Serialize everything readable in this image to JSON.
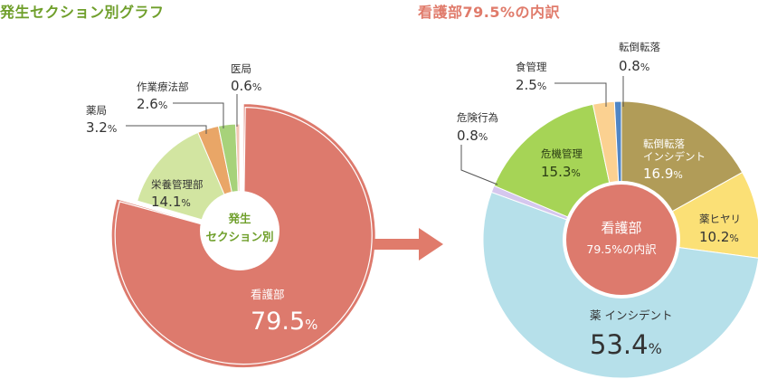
{
  "titles": {
    "left": "発生セクション別グラフ",
    "right": "看護部79.5%の内訳"
  },
  "center_labels": {
    "left_line1": "発生",
    "left_line2": "セクション別",
    "right_line1": "看護部",
    "right_line2": "79.5%の内訳"
  },
  "unit": "%",
  "colors": {
    "left_title": "#6f9f2b",
    "right_title": "#e07b6b",
    "arrow": "#e07b6b",
    "leader": "#555555"
  },
  "chart_data": [
    {
      "type": "pie",
      "title": "発生セクション別グラフ",
      "slices": [
        {
          "name": "看護部",
          "value": 79.5,
          "color": "#dd7a6d"
        },
        {
          "name": "栄養管理部",
          "value": 14.1,
          "color": "#d2e5a1"
        },
        {
          "name": "薬局",
          "value": 3.2,
          "color": "#e9a667"
        },
        {
          "name": "作業療法部",
          "value": 2.6,
          "color": "#a7d27a"
        },
        {
          "name": "医局",
          "value": 0.6,
          "color": "#f3c6b4"
        }
      ]
    },
    {
      "type": "pie",
      "title": "看護部79.5%の内訳",
      "slices": [
        {
          "name": "転倒転落インシデント",
          "value": 16.9,
          "color": "#b19c58"
        },
        {
          "name": "薬ヒヤリ",
          "value": 10.2,
          "color": "#fbe076"
        },
        {
          "name": "薬 インシデント",
          "value": 53.4,
          "color": "#b6e0ea"
        },
        {
          "name": "危険行為",
          "value": 0.8,
          "color": "#d5c7ee"
        },
        {
          "name": "危機管理",
          "value": 15.3,
          "color": "#a6d456"
        },
        {
          "name": "食管理",
          "value": 2.5,
          "color": "#fbd191"
        },
        {
          "name": "転倒転落",
          "value": 0.8,
          "color": "#4f86c6"
        }
      ]
    }
  ]
}
